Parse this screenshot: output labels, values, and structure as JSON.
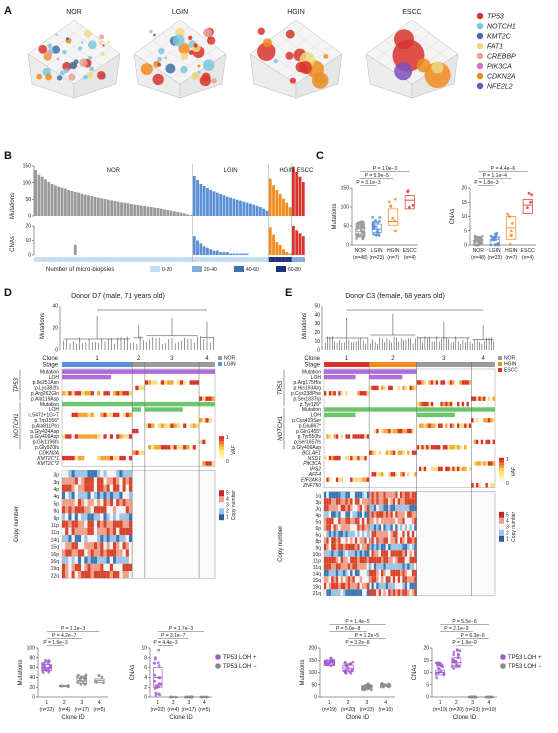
{
  "figure": {
    "panel_letters": [
      "A",
      "B",
      "C",
      "D",
      "E"
    ],
    "colors": {
      "TP53": "#d9342b",
      "NOTCH1": "#7fc6dd",
      "KMT2C": "#3f6fa8",
      "FAT1": "#f0d879",
      "CREBBP": "#e8a09a",
      "PIK3CA": "#d070c0",
      "CDKN2A": "#f08b1e",
      "NFE2L2": "#7b4ec0",
      "NOR": "#9a9a9a",
      "LGIN": "#5b8fd6",
      "HGIN": "#f08b1e",
      "ESCC": "#d9342b",
      "LOH_pos": "#a05ad0",
      "LOH_neg": "#888888"
    }
  },
  "panelA": {
    "titles": [
      "NOR",
      "LGIN",
      "HGIN",
      "ESCC"
    ],
    "legend": [
      {
        "name": "TP53",
        "color": "#d9342b"
      },
      {
        "name": "NOTCH1",
        "color": "#7fc6dd"
      },
      {
        "name": "KMT2C",
        "color": "#3f6fa8"
      },
      {
        "name": "FAT1",
        "color": "#f0d879"
      },
      {
        "name": "CREBBP",
        "color": "#e8a09a"
      },
      {
        "name": "PIK3CA",
        "color": "#d070c0"
      },
      {
        "name": "CDKN2A",
        "color": "#f08b1e"
      },
      {
        "name": "NFE2L2",
        "color": "#7b4ec0"
      }
    ]
  },
  "panelB": {
    "groups": [
      "NOR",
      "LGIN",
      "HGIN",
      "ESCC"
    ],
    "ylab_mut": "Mutations",
    "ylab_cna": "CNAs",
    "mut_ticks": [
      "0",
      "50",
      "100",
      "150"
    ],
    "cna_ticks": [
      "0",
      "10",
      "20"
    ],
    "legend_title": "Number of micro-biopsies",
    "legend": [
      {
        "label": "0-20",
        "color": "#c6def1"
      },
      {
        "label": "20-40",
        "color": "#7eaed8"
      },
      {
        "label": "40-60",
        "color": "#3f6fa8"
      },
      {
        "label": "60-80",
        "color": "#1f2f7a"
      }
    ]
  },
  "panelC": {
    "ylab_left": "Mutations",
    "ylab_right": "CNAs",
    "left_ticks": [
      "0",
      "50",
      "100",
      "150"
    ],
    "right_ticks": [
      "0",
      "5",
      "10",
      "15",
      "20"
    ],
    "cats": [
      "NOR",
      "LGIN",
      "HGIN",
      "ESCC"
    ],
    "ns": [
      "(n=48)",
      "(n=23)",
      "(n=7)",
      "(n=4)"
    ],
    "pv_left": [
      "P = 1.0e−3",
      "P = 5.9e−5",
      "P = 3.1e−3"
    ],
    "pv_right": [
      "P = 4.4e−6",
      "P = 1.1e−4",
      "P = 1.8e−3"
    ]
  },
  "panelD": {
    "title": "Donor D7 (male, 71 years old)",
    "mut_ticks": [
      "0",
      "20",
      "40"
    ],
    "tree_label": "Mutations",
    "clone_label": "Clone",
    "stage_label": "Stage",
    "clones": [
      "1",
      "2",
      "3",
      "4"
    ],
    "stage_legend": [
      "NOR",
      "LGIN"
    ],
    "gene_tp53": "TP53",
    "gene_notch1": "NOTCH1",
    "rows_tp53": [
      "Mutation",
      "LOH",
      "p.Ile251Asn",
      "p.Lys382fs",
      "p.Arg262Gln",
      "p.Ala119Asp"
    ],
    "rows_notch1": [
      "Mutation",
      "LOH",
      "c.5472+1G>T",
      "p.Trp1556*",
      "p.Ala811Pro",
      "p.Gly434Asp",
      "p.Gly406Asp",
      "p.Gly1196fs",
      "p.Gly920fs"
    ],
    "rows_other": [
      "CDKN2A",
      "KMT2C*1",
      "KMT2C*2"
    ],
    "vaf_label": "VAF",
    "vaf_ticks": [
      "0",
      "1"
    ],
    "cn_label": "Copy number",
    "cn_rows": [
      "3p",
      "3q",
      "4p",
      "4q",
      "5p",
      "8q",
      "9p",
      "11p",
      "11q",
      "14q",
      "15q",
      "16p",
      "16q",
      "19q",
      "22q"
    ],
    "cn_legend_label": "Copy number",
    "cn_ticks": [
      "1",
      "2",
      "3",
      "4",
      "5"
    ],
    "box_left": {
      "ylabel": "Mutations",
      "ticks": [
        "0",
        "20",
        "40",
        "60",
        "80",
        "100"
      ],
      "xlabel": "Clone ID",
      "cats": [
        "1",
        "2",
        "3",
        "4"
      ],
      "ns": [
        "(n=22)",
        "(n=4)",
        "(n=17)",
        "(n=5)"
      ],
      "pvals": [
        "P = 1.1e−3",
        "P = 4.2e−7",
        "P = 1.9e−3"
      ]
    },
    "box_right": {
      "ylabel": "CNAs",
      "ticks": [
        "0",
        "2",
        "4",
        "6",
        "8",
        "10"
      ],
      "xlabel": "Clone ID",
      "cats": [
        "1",
        "2",
        "3",
        "4"
      ],
      "ns": [
        "(n=22)",
        "(n=4)",
        "(n=17)",
        "(n=5)"
      ],
      "pvals": [
        "P = 1.7e−3",
        "P = 3.1e−7",
        "P = 4.4e−3"
      ]
    },
    "loh_legend": [
      "TP53 LOH +",
      "TP53 LOH −"
    ]
  },
  "panelE": {
    "title": "Donor C3 (female, 68 years old)",
    "mut_ticks": [
      "0",
      "10",
      "20",
      "30",
      "40",
      "50"
    ],
    "tree_label": "Mutations",
    "clone_label": "Clone",
    "stage_label": "Stage",
    "clones": [
      "1",
      "2",
      "3",
      "4"
    ],
    "stage_legend": [
      "NOR",
      "HGIN",
      "ESCC"
    ],
    "gene_tp53": "TP53",
    "gene_notch1": "NOTCH1",
    "rows_tp53": [
      "Mutation",
      "LOH",
      "p.Arg175His",
      "p.His193Arg",
      "p.Cys238Phe",
      "p.Ser183Trp",
      "p.Tyr126*"
    ],
    "rows_notch1": [
      "Mutation",
      "LOH",
      "p.Cys429Ser",
      "p.Glu867*",
      "p.Gln1455*",
      "p.Tyr550fs",
      "p.Ser1657fs",
      "p.Gly406Asp"
    ],
    "rows_other": [
      "BCLAF1",
      "NSD1",
      "PIK3CA",
      "IRS2",
      "AFF4",
      "EIF2AK3",
      "ZNF750"
    ],
    "vaf_label": "VAF",
    "vaf_ticks": [
      "0",
      "1"
    ],
    "cn_label": "Copy number",
    "cn_rows": [
      "1q",
      "3p",
      "3q",
      "4p",
      "5q",
      "6p",
      "6q",
      "8p",
      "9q",
      "10p",
      "11p",
      "11q",
      "14q",
      "15q",
      "18q",
      "21q"
    ],
    "cn_legend_label": "Copy number",
    "cn_ticks": [
      "1",
      "2",
      "3",
      "4",
      "5"
    ],
    "box_left": {
      "ylabel": "Mutations",
      "ticks": [
        "0",
        "50",
        "100",
        "150",
        "200"
      ],
      "xlabel": "Clone ID",
      "cats": [
        "1",
        "2",
        "3",
        "4"
      ],
      "ns": [
        "(n=19)",
        "(n=20)",
        "(n=23)",
        "(n=10)"
      ],
      "pvals": [
        "P = 1.4e−5",
        "P = 5.0e−8",
        "P = 1.2e−5",
        "P = 3.2e−8"
      ]
    },
    "box_right": {
      "ylabel": "CNAs",
      "ticks": [
        "0",
        "5",
        "10",
        "15",
        "20"
      ],
      "xlabel": "Clone ID",
      "cats": [
        "1",
        "2",
        "3",
        "4"
      ],
      "ns": [
        "(n=19)",
        "(n=20)",
        "(n=23)",
        "(n=10)"
      ],
      "pvals": [
        "P = 5.5e−6",
        "P = 2.1e−9",
        "P = 6.3e−6",
        "P = 1.9e−9"
      ]
    },
    "loh_legend": [
      "TP53 LOH +",
      "TP53 LOH −"
    ]
  },
  "chart_data": [
    {
      "type": "scatter",
      "panel": "A",
      "subtype": "3d-bubble",
      "categories": [
        "NOR",
        "LGIN",
        "HGIN",
        "ESCC"
      ],
      "series": [
        {
          "name": "TP53"
        },
        {
          "name": "NOTCH1"
        },
        {
          "name": "KMT2C"
        },
        {
          "name": "FAT1"
        },
        {
          "name": "CREBBP"
        },
        {
          "name": "PIK3CA"
        },
        {
          "name": "CDKN2A"
        },
        {
          "name": "NFE2L2"
        }
      ]
    },
    {
      "type": "bar",
      "panel": "B",
      "ylabel": "Mutations",
      "ylim": [
        0,
        150
      ],
      "groups": [
        {
          "name": "NOR",
          "values": [
            138,
            124,
            118,
            110,
            102,
            96,
            92,
            88,
            85,
            82,
            78,
            75,
            72,
            70,
            67,
            64,
            62,
            60,
            57,
            55,
            53,
            51,
            49,
            47,
            45,
            43,
            41,
            40,
            38,
            36,
            34,
            33,
            31,
            30,
            28,
            27,
            25,
            24,
            22,
            20,
            18,
            16,
            14,
            12,
            10,
            8,
            5,
            3
          ]
        },
        {
          "name": "LGIN",
          "values": [
            120,
            108,
            96,
            90,
            84,
            78,
            74,
            70,
            66,
            62,
            58,
            55,
            52,
            49,
            46,
            43,
            40,
            37,
            34,
            31,
            27,
            22,
            16
          ]
        },
        {
          "name": "HGIN",
          "values": [
            112,
            92,
            78,
            66,
            52,
            40,
            26
          ]
        },
        {
          "name": "ESCC",
          "values": [
            148,
            132,
            118,
            102
          ]
        }
      ]
    },
    {
      "type": "bar",
      "panel": "B",
      "ylabel": "CNAs",
      "ylim": [
        0,
        20
      ],
      "groups": [
        {
          "name": "NOR",
          "values": [
            0,
            0,
            0,
            0,
            0,
            0,
            0,
            0,
            0,
            0,
            0,
            0,
            7,
            0,
            0,
            0,
            0,
            0,
            0,
            0,
            0,
            0,
            0,
            0,
            0,
            0,
            0,
            0,
            0,
            0,
            0,
            0,
            0,
            0,
            0,
            0,
            0,
            0,
            0,
            0,
            0,
            0,
            0,
            0,
            0,
            0,
            0,
            0
          ]
        },
        {
          "name": "LGIN",
          "values": [
            13,
            10,
            8,
            6,
            5,
            4,
            3,
            3,
            2,
            2,
            2,
            1,
            1,
            1,
            1,
            1,
            1,
            0,
            0,
            0,
            0,
            0,
            0
          ]
        },
        {
          "name": "HGIN",
          "values": [
            19,
            14,
            9,
            7,
            4,
            2,
            1
          ]
        },
        {
          "name": "ESCC",
          "values": [
            20,
            17,
            15,
            13
          ]
        }
      ]
    },
    {
      "type": "scatter",
      "panel": "C-left",
      "ylabel": "Mutations",
      "ylim": [
        0,
        150
      ],
      "categories": [
        "NOR",
        "LGIN",
        "HGIN",
        "ESCC"
      ],
      "medians": [
        35,
        42,
        62,
        118
      ],
      "q1": [
        25,
        33,
        52,
        95
      ],
      "q3": [
        45,
        55,
        95,
        130
      ]
    },
    {
      "type": "scatter",
      "panel": "C-right",
      "ylabel": "CNAs",
      "ylim": [
        0,
        20
      ],
      "categories": [
        "NOR",
        "LGIN",
        "HGIN",
        "ESCC"
      ],
      "medians": [
        0,
        0,
        6,
        14
      ],
      "q1": [
        0,
        0,
        2,
        11
      ],
      "q3": [
        1,
        2,
        10,
        16
      ]
    },
    {
      "type": "scatter",
      "panel": "D-left",
      "ylabel": "Mutations",
      "xlabel": "Clone ID",
      "ylim": [
        0,
        100
      ],
      "categories": [
        "1",
        "2",
        "3",
        "4"
      ],
      "medians": [
        60,
        22,
        33,
        34
      ],
      "q1": [
        54,
        21,
        28,
        30
      ],
      "q3": [
        66,
        24,
        38,
        37
      ]
    },
    {
      "type": "scatter",
      "panel": "D-right",
      "ylabel": "CNAs",
      "xlabel": "Clone ID",
      "ylim": [
        0,
        10
      ],
      "categories": [
        "1",
        "2",
        "3",
        "4"
      ],
      "medians": [
        4,
        0,
        0,
        0
      ],
      "q1": [
        2,
        0,
        0,
        0
      ],
      "q3": [
        6,
        0,
        0,
        0
      ]
    },
    {
      "type": "scatter",
      "panel": "E-left",
      "ylabel": "Mutations",
      "xlabel": "Clone ID",
      "ylim": [
        0,
        200
      ],
      "categories": [
        "1",
        "2",
        "3",
        "4"
      ],
      "medians": [
        140,
        118,
        40,
        48
      ],
      "q1": [
        128,
        105,
        33,
        44
      ],
      "q3": [
        150,
        130,
        46,
        53
      ]
    },
    {
      "type": "scatter",
      "panel": "E-right",
      "ylabel": "CNAs",
      "xlabel": "Clone ID",
      "ylim": [
        0,
        20
      ],
      "categories": [
        "1",
        "2",
        "3",
        "4"
      ],
      "medians": [
        10,
        14,
        0,
        0
      ],
      "q1": [
        9,
        13,
        0,
        0
      ],
      "q3": [
        11,
        16,
        0,
        0
      ]
    }
  ]
}
